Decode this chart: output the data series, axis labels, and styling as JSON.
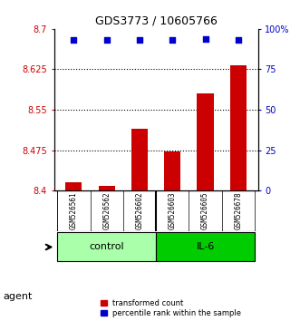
{
  "title": "GDS3773 / 10605766",
  "samples": [
    "GSM526561",
    "GSM526562",
    "GSM526602",
    "GSM526603",
    "GSM526605",
    "GSM526678"
  ],
  "transformed_counts": [
    8.415,
    8.408,
    8.515,
    8.472,
    8.58,
    8.632
  ],
  "percentile_ranks": [
    93,
    93,
    93,
    93,
    94,
    93
  ],
  "ylim_left": [
    8.4,
    8.7
  ],
  "ylim_right": [
    0,
    100
  ],
  "yticks_left": [
    8.4,
    8.475,
    8.55,
    8.625,
    8.7
  ],
  "ytick_labels_left": [
    "8.4",
    "8.475",
    "8.55",
    "8.625",
    "8.7"
  ],
  "yticks_right": [
    0,
    25,
    50,
    75,
    100
  ],
  "ytick_labels_right": [
    "0",
    "25",
    "50",
    "75",
    "100%"
  ],
  "grid_lines": [
    8.475,
    8.55,
    8.625
  ],
  "bar_color": "#cc0000",
  "dot_color": "#0000cc",
  "bar_width": 0.5,
  "groups": [
    {
      "label": "control",
      "indices": [
        0,
        1,
        2
      ],
      "color": "#aaffaa"
    },
    {
      "label": "IL-6",
      "indices": [
        3,
        4,
        5
      ],
      "color": "#00cc00"
    }
  ],
  "sample_row_color": "#cccccc",
  "agent_label": "agent",
  "legend_bar_label": "transformed count",
  "legend_dot_label": "percentile rank within the sample",
  "background_color": "#ffffff",
  "plot_bg_color": "#ffffff"
}
